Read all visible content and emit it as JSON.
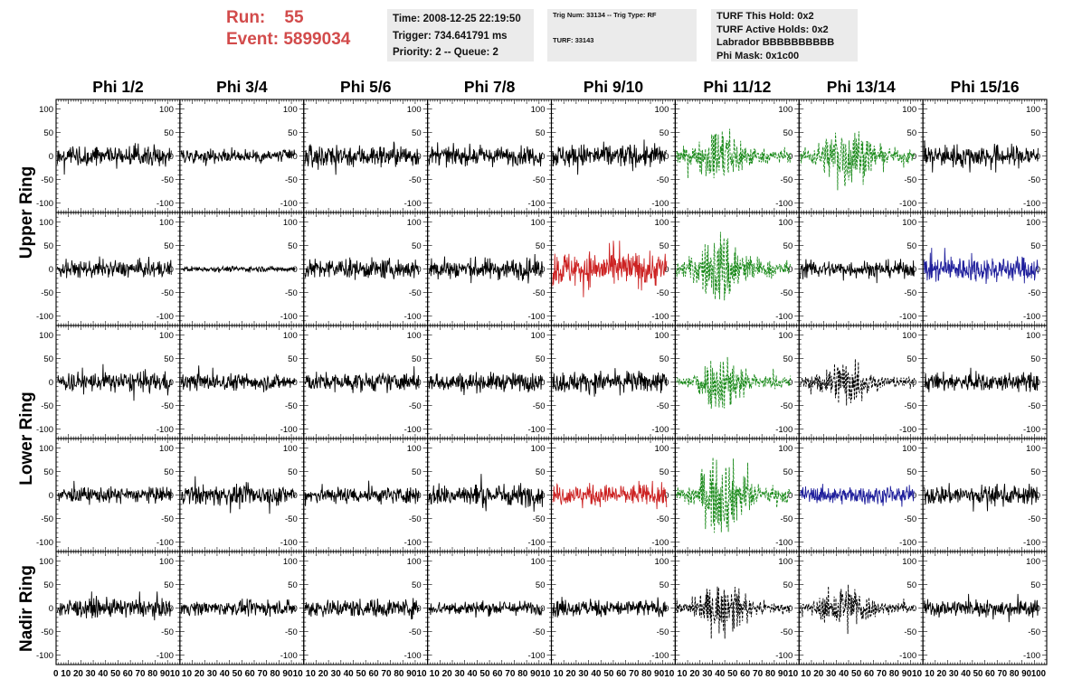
{
  "header": {
    "run_label": "Run:",
    "run_value": "55",
    "event_label": "Event:",
    "event_value": "5899034"
  },
  "info_panel_1": {
    "time": "Time: 2008-12-25 22:19:50",
    "trigger": "Trigger: 734.641791 ms",
    "priority": "Priority: 2 -- Queue: 2"
  },
  "info_panel_2": {
    "trig": "Trig Num: 33134 -- Trig Type: RF",
    "turf": "TURF: 33143"
  },
  "info_panel_3": {
    "this_hold": "TURF This Hold: 0x2",
    "active_holds": "TURF Active Holds: 0x2",
    "labrador": "Labrador BBBBBBBBBB",
    "phi_mask": "Phi Mask: 0x1c00"
  },
  "colors": {
    "black": "#000000",
    "green": "#1a8a1a",
    "red": "#cc2222",
    "blue": "#1f1f9c",
    "title_red": "#d24b4b",
    "panel_bg": "#ebebeb"
  },
  "chart_data": {
    "type": "line",
    "columns": [
      "Phi 1/2",
      "Phi 3/4",
      "Phi 5/6",
      "Phi 7/8",
      "Phi 9/10",
      "Phi 11/12",
      "Phi 13/14",
      "Phi 15/16"
    ],
    "row_labels": [
      {
        "label": "Upper Ring",
        "rows": [
          0,
          1
        ]
      },
      {
        "label": "Lower Ring",
        "rows": [
          2,
          3
        ]
      },
      {
        "label": "Nadir Ring",
        "rows": [
          4
        ]
      }
    ],
    "xlim": [
      0,
      100
    ],
    "ylim": [
      -120,
      120
    ],
    "ytick_labels": [
      "100",
      "50",
      "0",
      "-50",
      "-100"
    ],
    "xtick_labels": [
      "0",
      "10",
      "20",
      "30",
      "40",
      "50",
      "60",
      "70",
      "80",
      "90",
      "100"
    ],
    "bottom_axis_labels": [
      "0 10 20 30 40 50 60 70 80 9010",
      "10 20 30 40 50 60 70 80 9010",
      "10 20 30 40 50 60 70 80 9010",
      "10 20 30 40 50 60 70 80 9010",
      "10 20 30 40 50 60 70 80 9010",
      "10 20 30 40 50 60 70 80 9010",
      "10 20 30 40 50 60 70 80 9010",
      "10 20 30 40 50 60 70 80 90100"
    ],
    "waveform_x_range": [
      1,
      93
    ],
    "panels": [
      [
        {
          "color": "black",
          "style": "solid",
          "amp": 14,
          "env": "flat",
          "peak": 45
        },
        {
          "color": "black",
          "style": "solid",
          "amp": 10,
          "env": "flat",
          "peak": 30
        },
        {
          "color": "black",
          "style": "solid",
          "amp": 16,
          "env": "flat",
          "peak": 40
        },
        {
          "color": "black",
          "style": "solid",
          "amp": 13,
          "env": "flat",
          "peak": 35
        },
        {
          "color": "black",
          "style": "solid",
          "amp": 17,
          "env": "flat",
          "peak": 40
        },
        {
          "color": "green",
          "style": "dashed",
          "amp": 35,
          "env": "center",
          "peak": 70
        },
        {
          "color": "green",
          "style": "dashed",
          "amp": 40,
          "env": "center",
          "peak": 80
        },
        {
          "color": "black",
          "style": "solid",
          "amp": 16,
          "env": "flat",
          "peak": 35
        }
      ],
      [
        {
          "color": "black",
          "style": "solid",
          "amp": 12,
          "env": "flat",
          "peak": 40
        },
        {
          "color": "black",
          "style": "solid",
          "amp": 4,
          "env": "flat",
          "peak": 10
        },
        {
          "color": "black",
          "style": "solid",
          "amp": 14,
          "env": "flat",
          "peak": 35
        },
        {
          "color": "black",
          "style": "solid",
          "amp": 15,
          "env": "flat",
          "peak": 50
        },
        {
          "color": "red",
          "style": "solid",
          "amp": 25,
          "env": "flat",
          "peak": 60
        },
        {
          "color": "green",
          "style": "dashed",
          "amp": 45,
          "env": "center",
          "peak": 90
        },
        {
          "color": "black",
          "style": "solid",
          "amp": 12,
          "env": "flat",
          "peak": 30
        },
        {
          "color": "blue",
          "style": "solid",
          "amp": 18,
          "env": "flat",
          "peak": 45
        }
      ],
      [
        {
          "color": "black",
          "style": "solid",
          "amp": 14,
          "env": "flat",
          "peak": 40
        },
        {
          "color": "black",
          "style": "solid",
          "amp": 12,
          "env": "flat",
          "peak": 35
        },
        {
          "color": "black",
          "style": "solid",
          "amp": 13,
          "env": "flat",
          "peak": 35
        },
        {
          "color": "black",
          "style": "solid",
          "amp": 13,
          "env": "flat",
          "peak": 35
        },
        {
          "color": "black",
          "style": "solid",
          "amp": 15,
          "env": "flat",
          "peak": 55
        },
        {
          "color": "green",
          "style": "dashed",
          "amp": 35,
          "env": "center",
          "peak": 65
        },
        {
          "color": "black",
          "style": "dashed",
          "amp": 30,
          "env": "center",
          "peak": 50
        },
        {
          "color": "black",
          "style": "solid",
          "amp": 13,
          "env": "flat",
          "peak": 35
        }
      ],
      [
        {
          "color": "black",
          "style": "solid",
          "amp": 11,
          "env": "flat",
          "peak": 30
        },
        {
          "color": "black",
          "style": "solid",
          "amp": 14,
          "env": "flat",
          "peak": 40
        },
        {
          "color": "black",
          "style": "solid",
          "amp": 12,
          "env": "flat",
          "peak": 35
        },
        {
          "color": "black",
          "style": "solid",
          "amp": 16,
          "env": "flat",
          "peak": 45
        },
        {
          "color": "red",
          "style": "solid",
          "amp": 15,
          "env": "flat",
          "peak": 30
        },
        {
          "color": "green",
          "style": "dashed",
          "amp": 45,
          "env": "center",
          "peak": 80
        },
        {
          "color": "blue",
          "style": "solid",
          "amp": 12,
          "env": "flat",
          "peak": 25
        },
        {
          "color": "black",
          "style": "solid",
          "amp": 14,
          "env": "flat",
          "peak": 35
        }
      ],
      [
        {
          "color": "black",
          "style": "solid",
          "amp": 13,
          "env": "flat",
          "peak": 35
        },
        {
          "color": "black",
          "style": "solid",
          "amp": 10,
          "env": "flat",
          "peak": 25
        },
        {
          "color": "black",
          "style": "solid",
          "amp": 13,
          "env": "flat",
          "peak": 40
        },
        {
          "color": "black",
          "style": "solid",
          "amp": 10,
          "env": "flat",
          "peak": 25
        },
        {
          "color": "black",
          "style": "solid",
          "amp": 12,
          "env": "flat",
          "peak": 30
        },
        {
          "color": "black",
          "style": "dashed",
          "amp": 30,
          "env": "center",
          "peak": 65
        },
        {
          "color": "black",
          "style": "dashed",
          "amp": 30,
          "env": "center",
          "peak": 55
        },
        {
          "color": "black",
          "style": "solid",
          "amp": 12,
          "env": "flat",
          "peak": 30
        }
      ]
    ]
  }
}
